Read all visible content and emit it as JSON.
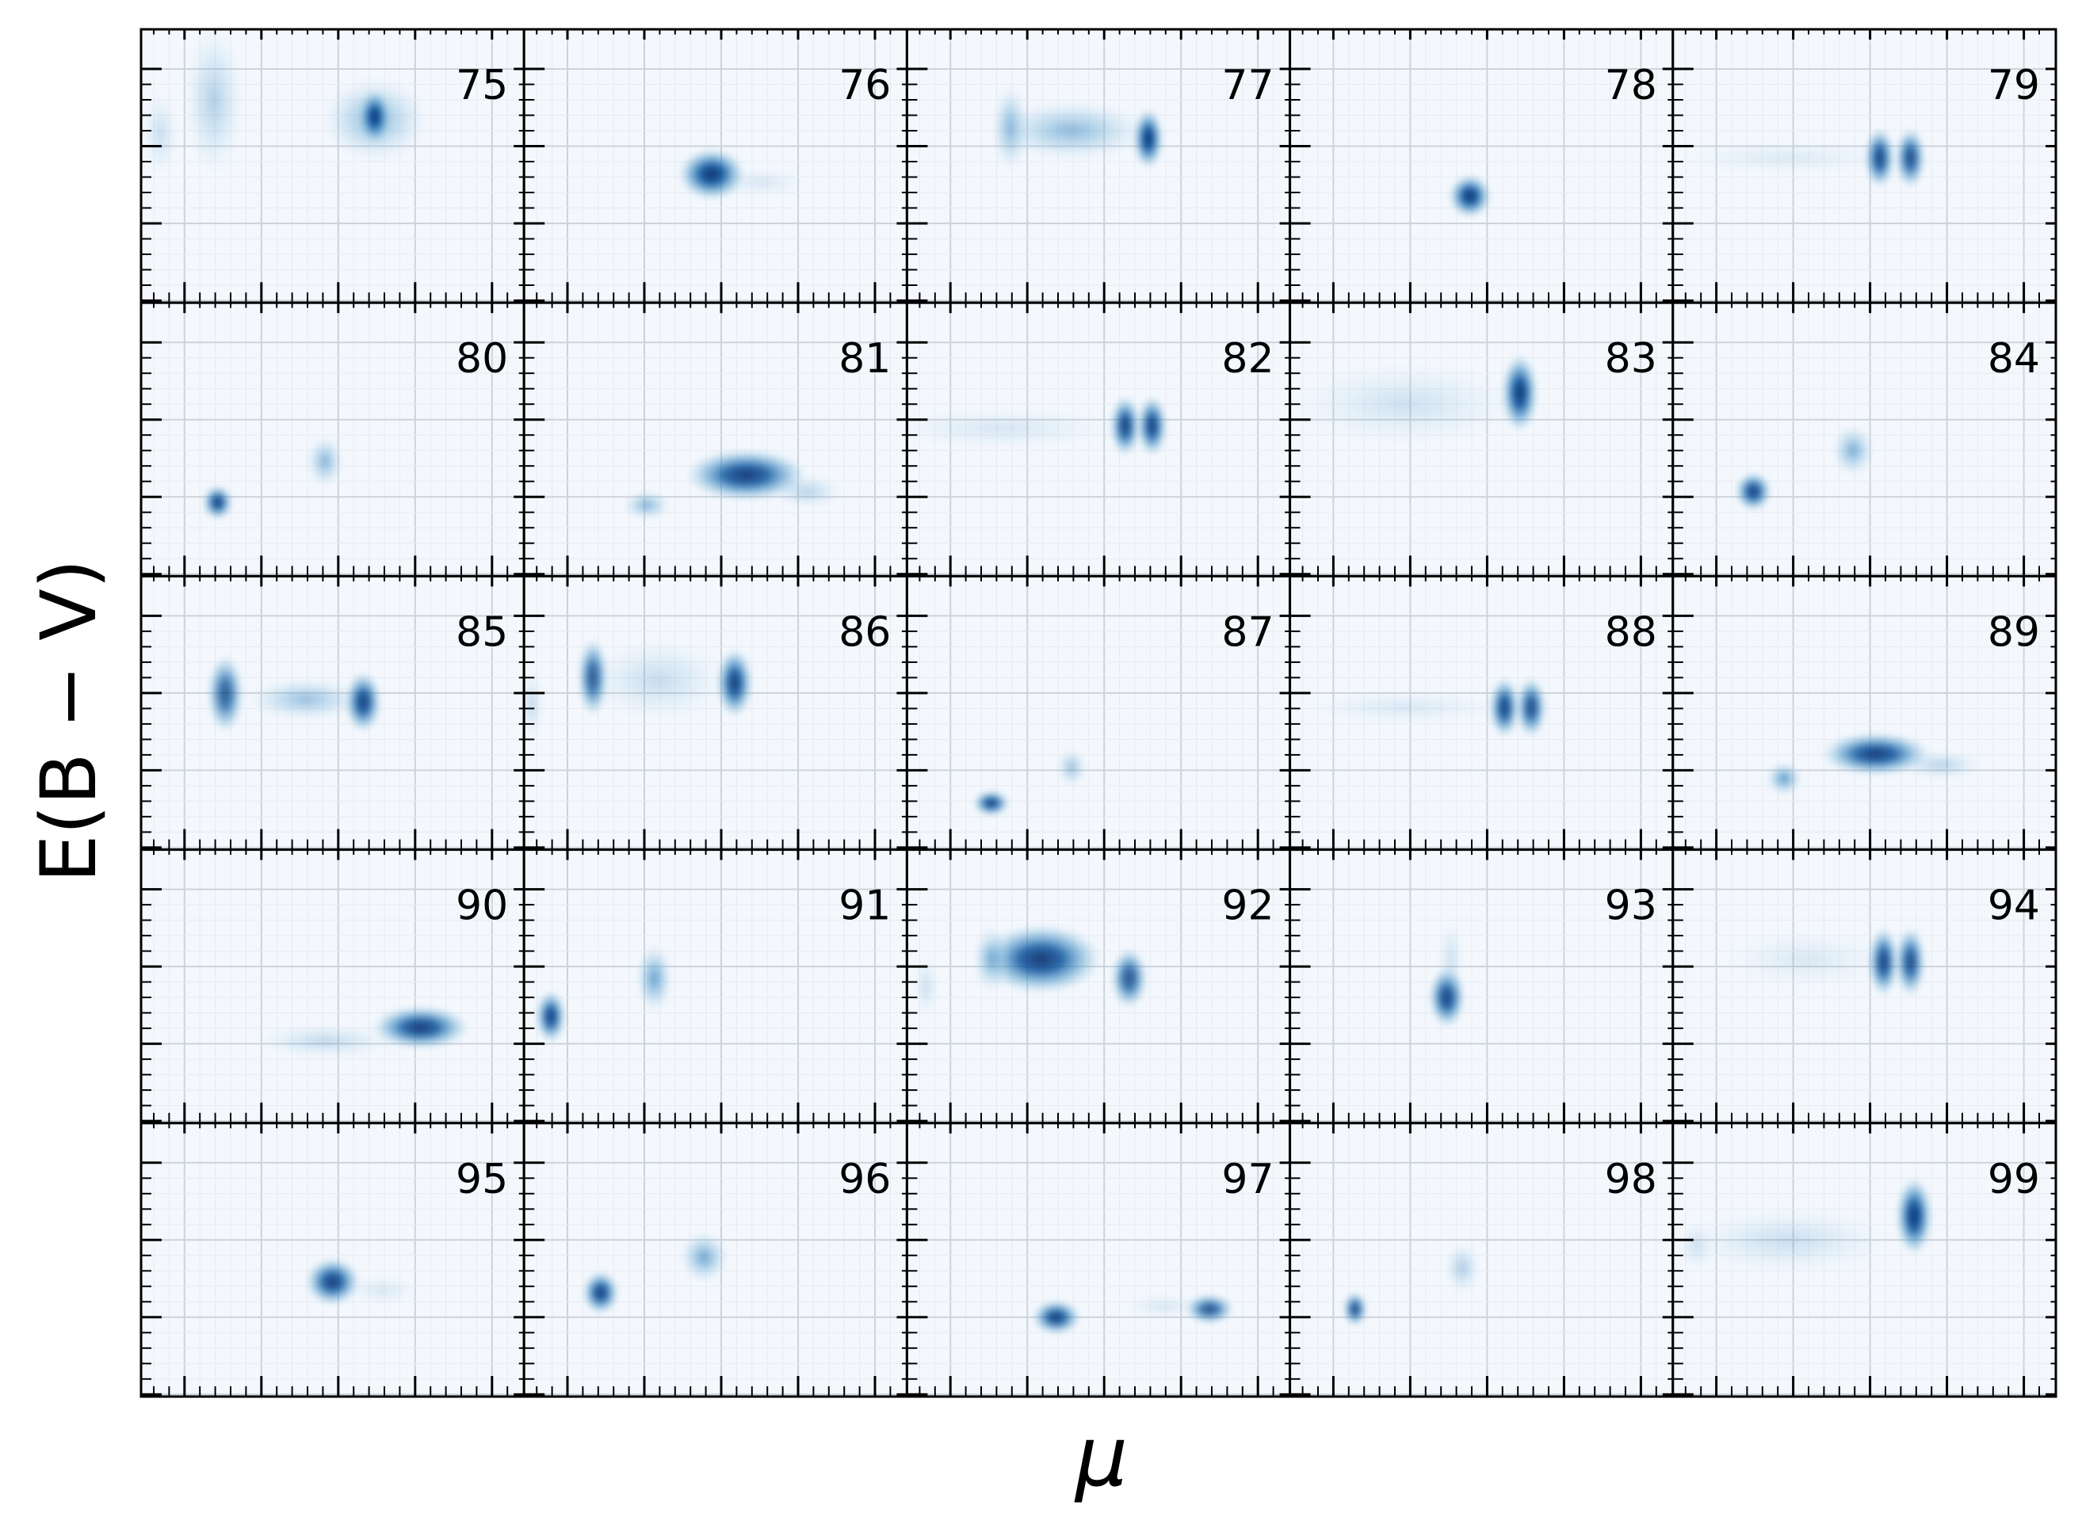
{
  "chart_data": {
    "type": "heatmap",
    "layout": "5x5 small multiples",
    "xlabel": "μ",
    "ylabel": "E(B − V)",
    "colormap": "Blues",
    "background_color": "#f4f8fd",
    "grid": true,
    "tick_labels_shown": false,
    "panels": [
      {
        "label": "75",
        "blobs": [
          {
            "x": 0.61,
            "y": 0.67,
            "sx": 0.09,
            "sy": 0.1,
            "w": 0.5
          },
          {
            "x": 0.19,
            "y": 0.74,
            "sx": 0.05,
            "sy": 0.18,
            "w": 0.32
          },
          {
            "x": 0.05,
            "y": 0.62,
            "sx": 0.03,
            "sy": 0.1,
            "w": 0.22
          },
          {
            "x": 0.61,
            "y": 0.68,
            "sx": 0.025,
            "sy": 0.06,
            "w": 1.0
          }
        ]
      },
      {
        "label": "76",
        "blobs": [
          {
            "x": 0.49,
            "y": 0.47,
            "sx": 0.055,
            "sy": 0.06,
            "w": 1.0
          },
          {
            "x": 0.62,
            "y": 0.44,
            "sx": 0.08,
            "sy": 0.035,
            "w": 0.15
          }
        ]
      },
      {
        "label": "77",
        "blobs": [
          {
            "x": 0.27,
            "y": 0.64,
            "sx": 0.03,
            "sy": 0.1,
            "w": 0.55
          },
          {
            "x": 0.43,
            "y": 0.63,
            "sx": 0.13,
            "sy": 0.07,
            "w": 0.5
          },
          {
            "x": 0.63,
            "y": 0.6,
            "sx": 0.025,
            "sy": 0.07,
            "w": 1.0
          }
        ]
      },
      {
        "label": "78",
        "blobs": [
          {
            "x": 0.47,
            "y": 0.39,
            "sx": 0.035,
            "sy": 0.05,
            "w": 1.0
          }
        ]
      },
      {
        "label": "79",
        "blobs": [
          {
            "x": 0.54,
            "y": 0.53,
            "sx": 0.025,
            "sy": 0.07,
            "w": 0.95
          },
          {
            "x": 0.62,
            "y": 0.53,
            "sx": 0.025,
            "sy": 0.07,
            "w": 0.9
          },
          {
            "x": 0.3,
            "y": 0.53,
            "sx": 0.2,
            "sy": 0.04,
            "w": 0.12
          }
        ]
      },
      {
        "label": "80",
        "blobs": [
          {
            "x": 0.2,
            "y": 0.27,
            "sx": 0.025,
            "sy": 0.04,
            "w": 0.95
          },
          {
            "x": 0.48,
            "y": 0.42,
            "sx": 0.03,
            "sy": 0.06,
            "w": 0.55
          }
        ]
      },
      {
        "label": "81",
        "blobs": [
          {
            "x": 0.58,
            "y": 0.37,
            "sx": 0.1,
            "sy": 0.06,
            "w": 0.95
          },
          {
            "x": 0.32,
            "y": 0.26,
            "sx": 0.04,
            "sy": 0.035,
            "w": 0.55
          },
          {
            "x": 0.74,
            "y": 0.31,
            "sx": 0.06,
            "sy": 0.04,
            "w": 0.3
          }
        ]
      },
      {
        "label": "82",
        "blobs": [
          {
            "x": 0.57,
            "y": 0.55,
            "sx": 0.025,
            "sy": 0.07,
            "w": 0.95
          },
          {
            "x": 0.64,
            "y": 0.55,
            "sx": 0.025,
            "sy": 0.07,
            "w": 0.95
          },
          {
            "x": 0.25,
            "y": 0.54,
            "sx": 0.2,
            "sy": 0.05,
            "w": 0.15
          }
        ]
      },
      {
        "label": "83",
        "blobs": [
          {
            "x": 0.6,
            "y": 0.67,
            "sx": 0.03,
            "sy": 0.09,
            "w": 1.0
          },
          {
            "x": 0.3,
            "y": 0.63,
            "sx": 0.2,
            "sy": 0.1,
            "w": 0.18
          }
        ]
      },
      {
        "label": "84",
        "blobs": [
          {
            "x": 0.21,
            "y": 0.31,
            "sx": 0.03,
            "sy": 0.045,
            "w": 0.95
          },
          {
            "x": 0.47,
            "y": 0.46,
            "sx": 0.035,
            "sy": 0.06,
            "w": 0.6
          }
        ]
      },
      {
        "label": "85",
        "blobs": [
          {
            "x": 0.22,
            "y": 0.57,
            "sx": 0.03,
            "sy": 0.09,
            "w": 0.8
          },
          {
            "x": 0.43,
            "y": 0.55,
            "sx": 0.1,
            "sy": 0.05,
            "w": 0.45
          },
          {
            "x": 0.58,
            "y": 0.54,
            "sx": 0.03,
            "sy": 0.07,
            "w": 0.95
          }
        ]
      },
      {
        "label": "86",
        "blobs": [
          {
            "x": 0.18,
            "y": 0.63,
            "sx": 0.025,
            "sy": 0.09,
            "w": 0.85
          },
          {
            "x": 0.55,
            "y": 0.61,
            "sx": 0.03,
            "sy": 0.08,
            "w": 0.95
          },
          {
            "x": 0.35,
            "y": 0.62,
            "sx": 0.12,
            "sy": 0.1,
            "w": 0.22
          },
          {
            "x": 0.02,
            "y": 0.53,
            "sx": 0.02,
            "sy": 0.08,
            "w": 0.25
          }
        ]
      },
      {
        "label": "87",
        "blobs": [
          {
            "x": 0.22,
            "y": 0.17,
            "sx": 0.03,
            "sy": 0.03,
            "w": 0.95
          },
          {
            "x": 0.43,
            "y": 0.3,
            "sx": 0.025,
            "sy": 0.045,
            "w": 0.45
          }
        ]
      },
      {
        "label": "88",
        "blobs": [
          {
            "x": 0.56,
            "y": 0.52,
            "sx": 0.025,
            "sy": 0.07,
            "w": 0.95
          },
          {
            "x": 0.63,
            "y": 0.52,
            "sx": 0.025,
            "sy": 0.07,
            "w": 0.9
          },
          {
            "x": 0.3,
            "y": 0.52,
            "sx": 0.18,
            "sy": 0.04,
            "w": 0.14
          }
        ]
      },
      {
        "label": "89",
        "blobs": [
          {
            "x": 0.53,
            "y": 0.35,
            "sx": 0.09,
            "sy": 0.05,
            "w": 0.95
          },
          {
            "x": 0.29,
            "y": 0.26,
            "sx": 0.03,
            "sy": 0.04,
            "w": 0.75
          },
          {
            "x": 0.7,
            "y": 0.31,
            "sx": 0.07,
            "sy": 0.035,
            "w": 0.3
          }
        ]
      },
      {
        "label": "90",
        "blobs": [
          {
            "x": 0.73,
            "y": 0.35,
            "sx": 0.08,
            "sy": 0.05,
            "w": 0.95
          },
          {
            "x": 0.48,
            "y": 0.3,
            "sx": 0.12,
            "sy": 0.04,
            "w": 0.25
          }
        ]
      },
      {
        "label": "91",
        "blobs": [
          {
            "x": 0.07,
            "y": 0.39,
            "sx": 0.025,
            "sy": 0.06,
            "w": 0.95
          },
          {
            "x": 0.34,
            "y": 0.53,
            "sx": 0.03,
            "sy": 0.08,
            "w": 0.7
          }
        ]
      },
      {
        "label": "92",
        "blobs": [
          {
            "x": 0.35,
            "y": 0.6,
            "sx": 0.1,
            "sy": 0.08,
            "w": 0.95
          },
          {
            "x": 0.58,
            "y": 0.53,
            "sx": 0.03,
            "sy": 0.07,
            "w": 0.85
          },
          {
            "x": 0.22,
            "y": 0.6,
            "sx": 0.03,
            "sy": 0.08,
            "w": 0.55
          },
          {
            "x": 0.05,
            "y": 0.5,
            "sx": 0.02,
            "sy": 0.07,
            "w": 0.22
          }
        ]
      },
      {
        "label": "93",
        "blobs": [
          {
            "x": 0.41,
            "y": 0.46,
            "sx": 0.03,
            "sy": 0.07,
            "w": 0.95
          },
          {
            "x": 0.42,
            "y": 0.6,
            "sx": 0.02,
            "sy": 0.1,
            "w": 0.2
          }
        ]
      },
      {
        "label": "94",
        "blobs": [
          {
            "x": 0.55,
            "y": 0.59,
            "sx": 0.025,
            "sy": 0.08,
            "w": 0.95
          },
          {
            "x": 0.62,
            "y": 0.59,
            "sx": 0.025,
            "sy": 0.08,
            "w": 0.9
          },
          {
            "x": 0.35,
            "y": 0.6,
            "sx": 0.15,
            "sy": 0.07,
            "w": 0.13
          }
        ]
      },
      {
        "label": "95",
        "blobs": [
          {
            "x": 0.5,
            "y": 0.42,
            "sx": 0.045,
            "sy": 0.055,
            "w": 0.95
          },
          {
            "x": 0.63,
            "y": 0.39,
            "sx": 0.06,
            "sy": 0.035,
            "w": 0.15
          }
        ]
      },
      {
        "label": "96",
        "blobs": [
          {
            "x": 0.2,
            "y": 0.38,
            "sx": 0.03,
            "sy": 0.05,
            "w": 0.95
          },
          {
            "x": 0.47,
            "y": 0.51,
            "sx": 0.04,
            "sy": 0.06,
            "w": 0.65
          }
        ]
      },
      {
        "label": "97",
        "blobs": [
          {
            "x": 0.39,
            "y": 0.29,
            "sx": 0.04,
            "sy": 0.04,
            "w": 0.95
          },
          {
            "x": 0.79,
            "y": 0.32,
            "sx": 0.04,
            "sy": 0.035,
            "w": 0.85
          },
          {
            "x": 0.67,
            "y": 0.33,
            "sx": 0.07,
            "sy": 0.03,
            "w": 0.15
          }
        ]
      },
      {
        "label": "98",
        "blobs": [
          {
            "x": 0.17,
            "y": 0.32,
            "sx": 0.02,
            "sy": 0.04,
            "w": 0.9
          },
          {
            "x": 0.45,
            "y": 0.47,
            "sx": 0.03,
            "sy": 0.06,
            "w": 0.35
          }
        ]
      },
      {
        "label": "99",
        "blobs": [
          {
            "x": 0.63,
            "y": 0.66,
            "sx": 0.03,
            "sy": 0.09,
            "w": 1.0
          },
          {
            "x": 0.3,
            "y": 0.57,
            "sx": 0.18,
            "sy": 0.08,
            "w": 0.2
          },
          {
            "x": 0.06,
            "y": 0.55,
            "sx": 0.03,
            "sy": 0.06,
            "w": 0.18
          }
        ]
      }
    ]
  }
}
